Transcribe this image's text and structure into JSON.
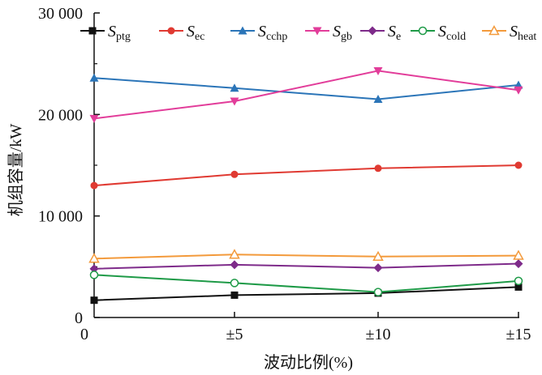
{
  "chart_data": {
    "type": "line",
    "x_tick_labels": [
      "0",
      "±5",
      "±10",
      "±15"
    ],
    "y_tick_labels": [
      "0",
      "10 000",
      "20 000",
      "30 000"
    ],
    "y_ticks": [
      0,
      10000,
      20000,
      30000
    ],
    "xlabel": "波动比例(%)",
    "ylabel": "机组容量/kW",
    "ylim": [
      0,
      30000
    ],
    "grid": false,
    "legend_position": "top",
    "series": [
      {
        "name": "S",
        "subscript": "ptg",
        "color": "#111111",
        "marker": "square",
        "values": [
          1700,
          2200,
          2400,
          3000
        ]
      },
      {
        "name": "S",
        "subscript": "ec",
        "color": "#e03a32",
        "marker": "circle",
        "values": [
          13000,
          14100,
          14700,
          15000
        ]
      },
      {
        "name": "S",
        "subscript": "cchp",
        "color": "#2b75b8",
        "marker": "triangle-up",
        "values": [
          23600,
          22600,
          21500,
          22900
        ]
      },
      {
        "name": "S",
        "subscript": "gb",
        "color": "#e23d9a",
        "marker": "triangle-down",
        "values": [
          19600,
          21300,
          24300,
          22400
        ]
      },
      {
        "name": "S",
        "subscript": "e",
        "color": "#7e2b8a",
        "marker": "diamond",
        "values": [
          4800,
          5200,
          4900,
          5300
        ]
      },
      {
        "name": "S",
        "subscript": "cold",
        "color": "#1e9a47",
        "marker": "circle-open",
        "values": [
          4200,
          3400,
          2500,
          3600
        ]
      },
      {
        "name": "S",
        "subscript": "heat",
        "color": "#f39a3b",
        "marker": "triangle-open",
        "values": [
          5800,
          6200,
          6000,
          6100
        ]
      }
    ]
  }
}
